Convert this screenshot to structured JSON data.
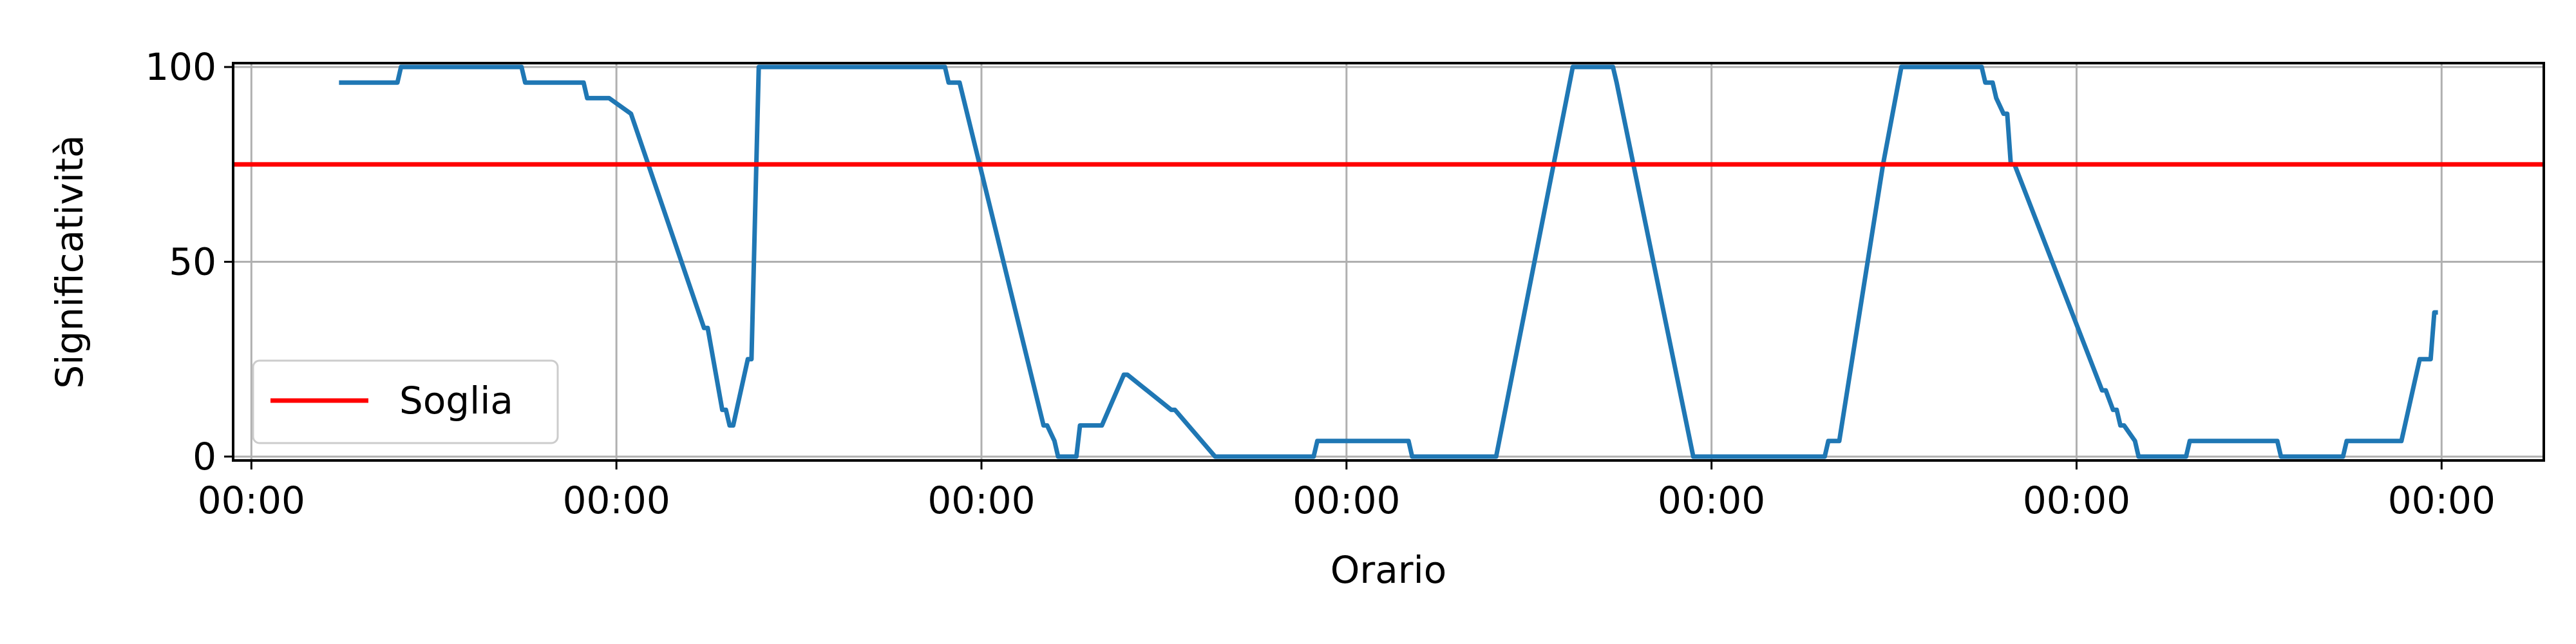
{
  "chart_data": {
    "type": "line",
    "title": "",
    "xlabel": "Orario",
    "ylabel": "Significatività",
    "xlim": [
      -0.05,
      6.28
    ],
    "ylim": [
      -1,
      101
    ],
    "x_ticks": [
      0,
      1,
      2,
      3,
      4,
      5,
      6
    ],
    "x_tick_labels": [
      "00:00",
      "00:00",
      "00:00",
      "00:00",
      "00:00",
      "00:00",
      "00:00"
    ],
    "y_ticks": [
      0,
      50,
      100
    ],
    "y_tick_labels": [
      "0",
      "50",
      "100"
    ],
    "grid": true,
    "legend": {
      "position": "lower-left",
      "entries": [
        "Soglia"
      ]
    },
    "series": [
      {
        "color": "#1f77b4",
        "x": [
          0.24,
          0.39,
          0.4,
          0.41,
          0.58,
          0.59,
          0.6,
          0.73,
          0.74,
          0.75,
          0.84,
          0.85,
          0.91,
          0.92,
          0.98,
          1.04,
          1.24,
          1.25,
          1.29,
          1.3,
          1.31,
          1.32,
          1.36,
          1.37,
          1.39,
          1.4,
          1.56,
          1.57,
          1.9,
          1.91,
          1.93,
          1.94,
          2.17,
          2.18,
          2.2,
          2.21,
          2.26,
          2.27,
          2.32,
          2.33,
          2.39,
          2.4,
          2.52,
          2.53,
          2.64,
          2.65,
          2.91,
          2.92,
          3.17,
          3.18,
          3.4,
          3.41,
          3.62,
          3.63,
          3.73,
          3.74,
          3.95,
          4.0,
          4.31,
          4.32,
          4.34,
          4.35,
          4.47,
          4.52,
          4.53,
          4.54,
          4.55,
          4.74,
          4.75,
          4.77,
          4.78,
          4.8,
          4.81,
          4.82,
          4.83,
          5.07,
          5.08,
          5.1,
          5.11,
          5.12,
          5.13,
          5.16,
          5.17,
          5.3,
          5.31,
          5.55,
          5.56,
          5.73,
          5.74,
          5.88,
          5.89,
          5.94,
          5.95,
          5.97,
          5.98,
          5.99
        ],
        "y": [
          96,
          96,
          96,
          100,
          100,
          100,
          100,
          100,
          100,
          96,
          96,
          96,
          96,
          92,
          92,
          88,
          33,
          33,
          12,
          12,
          8,
          8,
          25,
          25,
          100,
          100,
          100,
          100,
          100,
          96,
          96,
          96,
          8,
          8,
          4,
          0,
          0,
          8,
          8,
          8,
          21,
          21,
          12,
          12,
          0,
          0,
          0,
          4,
          4,
          0,
          0,
          0,
          100,
          100,
          100,
          96,
          0,
          0,
          0,
          4,
          4,
          4,
          75,
          100,
          100,
          100,
          100,
          100,
          96,
          96,
          92,
          88,
          88,
          75,
          75,
          17,
          17,
          12,
          12,
          8,
          8,
          4,
          0,
          0,
          4,
          4,
          0,
          0,
          4,
          4,
          4,
          25,
          25,
          25,
          37,
          37
        ]
      },
      {
        "name": "Soglia",
        "color": "#ff0000",
        "x": [
          -0.05,
          6.28
        ],
        "y": [
          75,
          75
        ]
      }
    ]
  }
}
